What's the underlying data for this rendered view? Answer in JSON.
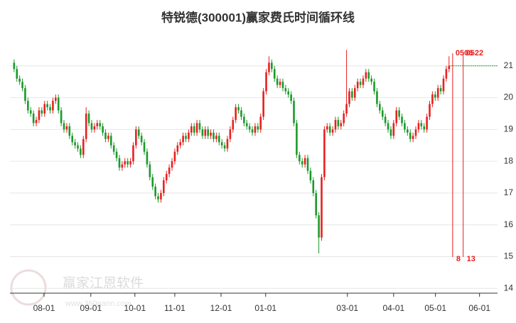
{
  "chart_data": {
    "type": "candlestick",
    "title": "特锐德(300001)赢家费氏时间循环线",
    "watermark": "赢家江恩软件",
    "watermark_url": "www.360gann.com",
    "up_color": "#e8201f",
    "down_color": "#1a9a2a",
    "xlim": [
      -1.5,
      174.5
    ],
    "ylim": [
      13.85,
      22
    ],
    "yticks": [
      14,
      15,
      16,
      17,
      18,
      19,
      20,
      21
    ],
    "grid": true,
    "xticks": [
      {
        "value": 10.8,
        "label": "08-01"
      },
      {
        "value": 27.7,
        "label": "09-01"
      },
      {
        "value": 43.6,
        "label": "10-01"
      },
      {
        "value": 58,
        "label": "11-01"
      },
      {
        "value": 74.7,
        "label": "12-01"
      },
      {
        "value": 90.8,
        "label": "01-01"
      },
      {
        "value": 120.3,
        "label": "03-01"
      },
      {
        "value": 137,
        "label": "04-01"
      },
      {
        "value": 152.1,
        "label": "05-01"
      },
      {
        "value": 168,
        "label": "06-01"
      }
    ],
    "open": [
      21.1,
      20.9,
      20.6,
      20.5,
      20.3,
      19.9,
      19.6,
      19.5,
      19.2,
      19.3,
      19.6,
      19.5,
      19.8,
      19.7,
      19.6,
      19.9,
      20.0,
      19.6,
      19.2,
      19.0,
      19.1,
      18.8,
      18.6,
      18.5,
      18.4,
      18.2,
      18.7,
      19.5,
      19.2,
      19.0,
      19.1,
      19.2,
      19.1,
      18.9,
      18.7,
      18.8,
      18.5,
      18.3,
      18.1,
      17.8,
      17.9,
      18.0,
      17.9,
      18.0,
      18.5,
      19.0,
      18.8,
      18.6,
      18.3,
      17.9,
      17.5,
      17.2,
      16.9,
      16.8,
      17.0,
      17.4,
      17.6,
      17.8,
      18.0,
      18.3,
      18.5,
      18.6,
      18.8,
      18.7,
      18.9,
      19.1,
      18.9,
      19.2,
      19.0,
      18.8,
      19.0,
      18.8,
      18.9,
      18.7,
      18.8,
      18.6,
      18.5,
      18.4,
      18.7,
      19.0,
      19.3,
      19.7,
      19.6,
      19.4,
      19.2,
      19.1,
      19.0,
      18.9,
      19.1,
      19.0,
      19.4,
      20.2,
      20.8,
      21.1,
      20.9,
      20.6,
      20.4,
      20.5,
      20.3,
      20.2,
      20.1,
      19.9,
      19.2,
      18.2,
      18.0,
      17.9,
      18.1,
      17.7,
      17.4,
      17.0,
      16.3,
      15.6,
      17.5,
      19.0,
      19.1,
      18.9,
      19.0,
      19.3,
      19.1,
      19.2,
      19.5,
      19.8,
      20.2,
      20.0,
      20.3,
      20.5,
      20.4,
      20.6,
      20.8,
      20.6,
      20.5,
      20.2,
      19.8,
      19.6,
      19.4,
      19.2,
      19.0,
      18.8,
      19.2,
      19.6,
      19.4,
      19.2,
      19.0,
      18.9,
      18.7,
      18.8,
      19.0,
      19.2,
      19.1,
      19.0,
      19.4,
      19.8,
      20.1,
      20.0,
      20.3,
      20.2,
      20.6,
      20.9
    ],
    "high": [
      21.2,
      21.0,
      20.7,
      20.6,
      20.4,
      20.0,
      19.7,
      19.6,
      19.4,
      19.7,
      19.7,
      19.9,
      19.9,
      19.8,
      20.0,
      20.1,
      20.1,
      19.7,
      19.3,
      19.2,
      19.2,
      18.9,
      18.7,
      18.6,
      18.5,
      18.8,
      19.7,
      19.6,
      19.3,
      19.2,
      19.3,
      19.3,
      19.2,
      19.0,
      18.9,
      18.9,
      18.6,
      18.4,
      18.2,
      18.0,
      18.1,
      18.1,
      18.1,
      18.6,
      19.1,
      19.1,
      18.9,
      18.7,
      18.4,
      18.0,
      17.6,
      17.3,
      17.0,
      17.1,
      17.5,
      17.7,
      17.9,
      18.1,
      18.4,
      18.6,
      18.7,
      18.9,
      18.9,
      19.0,
      19.2,
      19.2,
      19.3,
      19.3,
      19.1,
      19.1,
      19.1,
      19.0,
      19.0,
      18.9,
      18.9,
      18.7,
      18.6,
      18.8,
      19.1,
      19.4,
      19.8,
      19.8,
      19.7,
      19.5,
      19.3,
      19.2,
      19.1,
      19.2,
      19.2,
      19.5,
      20.3,
      20.9,
      21.3,
      21.2,
      21.0,
      20.7,
      20.6,
      20.6,
      20.4,
      20.3,
      20.2,
      20.0,
      19.3,
      18.3,
      18.1,
      18.2,
      18.2,
      17.8,
      17.5,
      17.1,
      16.4,
      17.6,
      19.1,
      19.2,
      19.2,
      19.1,
      19.4,
      19.4,
      19.3,
      19.6,
      21.5,
      20.3,
      20.3,
      20.4,
      20.6,
      20.6,
      20.7,
      20.9,
      20.9,
      20.7,
      20.6,
      20.3,
      19.9,
      19.7,
      19.5,
      19.3,
      19.1,
      19.3,
      19.7,
      19.7,
      19.5,
      19.3,
      19.1,
      19.0,
      18.9,
      19.1,
      19.3,
      19.3,
      19.2,
      19.5,
      19.9,
      20.2,
      20.2,
      20.4,
      20.4,
      20.7,
      21.0,
      21.3
    ],
    "low": [
      20.8,
      20.5,
      20.4,
      20.2,
      19.8,
      19.5,
      19.4,
      19.1,
      19.1,
      19.2,
      19.4,
      19.4,
      19.6,
      19.5,
      19.5,
      19.8,
      19.5,
      19.1,
      18.9,
      18.9,
      18.7,
      18.5,
      18.4,
      18.3,
      18.1,
      18.1,
      18.6,
      19.1,
      18.9,
      18.9,
      19.0,
      19.0,
      18.8,
      18.6,
      18.6,
      18.4,
      18.2,
      18.0,
      17.7,
      17.7,
      17.8,
      17.8,
      17.8,
      17.9,
      18.4,
      18.7,
      18.5,
      18.2,
      17.8,
      17.4,
      17.1,
      16.8,
      16.7,
      16.7,
      16.9,
      17.3,
      17.5,
      17.7,
      17.9,
      18.2,
      18.4,
      18.5,
      18.6,
      18.6,
      18.8,
      18.8,
      18.8,
      18.9,
      18.7,
      18.7,
      18.7,
      18.7,
      18.6,
      18.6,
      18.5,
      18.4,
      18.3,
      18.3,
      18.6,
      18.9,
      19.2,
      19.5,
      19.3,
      19.1,
      19.0,
      18.9,
      18.8,
      18.8,
      18.9,
      18.9,
      19.3,
      20.1,
      20.7,
      20.8,
      20.5,
      20.3,
      20.3,
      20.2,
      20.1,
      20.0,
      19.8,
      19.1,
      18.1,
      17.9,
      17.8,
      17.8,
      17.6,
      17.3,
      16.9,
      16.2,
      15.1,
      15.5,
      17.4,
      18.9,
      18.8,
      18.8,
      18.9,
      19.0,
      19.0,
      19.1,
      19.4,
      19.7,
      19.9,
      19.9,
      20.2,
      20.3,
      20.3,
      20.5,
      20.5,
      20.4,
      20.1,
      19.7,
      19.5,
      19.3,
      19.1,
      18.9,
      18.7,
      18.7,
      19.1,
      19.3,
      19.1,
      18.9,
      18.8,
      18.6,
      18.6,
      18.7,
      18.9,
      19.0,
      18.9,
      18.9,
      19.3,
      19.7,
      19.9,
      19.9,
      20.1,
      20.1,
      20.5,
      20.8
    ],
    "close": [
      20.9,
      20.6,
      20.5,
      20.3,
      19.9,
      19.6,
      19.5,
      19.2,
      19.3,
      19.6,
      19.5,
      19.8,
      19.7,
      19.6,
      19.9,
      20.0,
      19.6,
      19.2,
      19.0,
      19.1,
      18.8,
      18.6,
      18.5,
      18.4,
      18.2,
      18.7,
      19.5,
      19.2,
      19.0,
      19.1,
      19.2,
      19.1,
      18.9,
      18.7,
      18.8,
      18.5,
      18.3,
      18.1,
      17.8,
      17.9,
      18.0,
      17.9,
      18.0,
      18.5,
      19.0,
      18.8,
      18.6,
      18.3,
      17.9,
      17.5,
      17.2,
      16.9,
      16.8,
      17.0,
      17.4,
      17.6,
      17.8,
      18.0,
      18.3,
      18.5,
      18.6,
      18.8,
      18.7,
      18.9,
      19.1,
      18.9,
      19.2,
      19.0,
      18.8,
      19.0,
      18.8,
      18.9,
      18.7,
      18.8,
      18.6,
      18.5,
      18.4,
      18.7,
      19.0,
      19.3,
      19.7,
      19.6,
      19.4,
      19.2,
      19.1,
      19.0,
      18.9,
      19.1,
      19.0,
      19.4,
      20.2,
      20.8,
      21.1,
      20.9,
      20.6,
      20.4,
      20.5,
      20.3,
      20.2,
      20.1,
      19.9,
      19.2,
      18.2,
      18.0,
      17.9,
      18.1,
      17.7,
      17.4,
      17.0,
      16.3,
      15.6,
      17.5,
      19.0,
      19.1,
      18.9,
      19.0,
      19.3,
      19.1,
      19.2,
      19.5,
      19.8,
      20.2,
      20.0,
      20.3,
      20.5,
      20.4,
      20.6,
      20.8,
      20.6,
      20.5,
      20.2,
      19.8,
      19.6,
      19.4,
      19.2,
      19.0,
      18.8,
      19.2,
      19.6,
      19.4,
      19.2,
      19.0,
      18.9,
      18.7,
      18.8,
      19.0,
      19.2,
      19.1,
      19.0,
      19.4,
      19.8,
      20.1,
      20.0,
      20.3,
      20.2,
      20.6,
      20.9,
      21.0
    ],
    "cycle_lines": [
      {
        "x": 158.3,
        "label": "0506",
        "count": 8
      },
      {
        "x": 162.1,
        "label": "0522",
        "count": 13
      }
    ],
    "cycle_color": "#e8201f"
  }
}
